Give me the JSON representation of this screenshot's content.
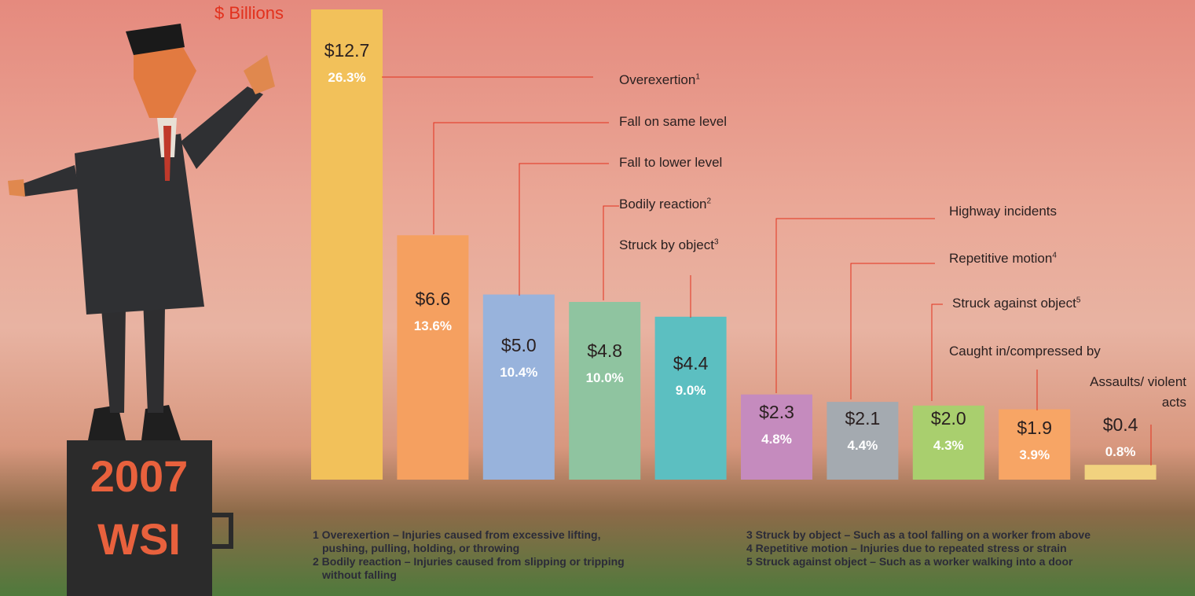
{
  "chart_data": {
    "type": "bar",
    "y_axis_label": "$ Billions",
    "badge": [
      "2007",
      "WSI"
    ],
    "categories": [
      "Overexertion",
      "Fall on same level",
      "Fall to lower level",
      "Bodily reaction",
      "Struck by object",
      "Highway incidents",
      "Repetitive motion",
      "Struck against object",
      "Caught in/compressed by",
      "Assaults/ violent acts"
    ],
    "category_notes": [
      "1",
      null,
      null,
      "2",
      "3",
      null,
      "4",
      "5",
      null,
      null
    ],
    "values": [
      12.7,
      6.6,
      5.0,
      4.8,
      4.4,
      2.3,
      2.1,
      2.0,
      1.9,
      0.4
    ],
    "value_labels": [
      "$12.7",
      "$6.6",
      "$5.0",
      "$4.8",
      "$4.4",
      "$2.3",
      "$2.1",
      "$2.0",
      "$1.9",
      "$0.4"
    ],
    "percent_labels": [
      "26.3%",
      "13.6%",
      "10.4%",
      "10.0%",
      "9.0%",
      "4.8%",
      "4.4%",
      "4.3%",
      "3.9%",
      "0.8%"
    ],
    "colors": [
      "#f2c15a",
      "#f5a060",
      "#98b3dc",
      "#8fc4a0",
      "#5cbfc1",
      "#c58bbe",
      "#a4aab0",
      "#a9cf6e",
      "#f7a565",
      "#f1d27f"
    ],
    "ylim": [
      0,
      12.7
    ],
    "footnotes": [
      [
        "1 Overexertion – Injuries caused from excessive lifting,",
        "pushing, pulling, holding, or throwing"
      ],
      [
        "2 Bodily reaction – Injuries caused from slipping or tripping",
        "without falling"
      ],
      [
        "3 Struck by object – Such as a tool falling on a worker from above"
      ],
      [
        "4 Repetitive motion – Injuries due to repeated stress or strain"
      ],
      [
        "5 Struck against object – Such as a worker walking into a door"
      ]
    ]
  }
}
